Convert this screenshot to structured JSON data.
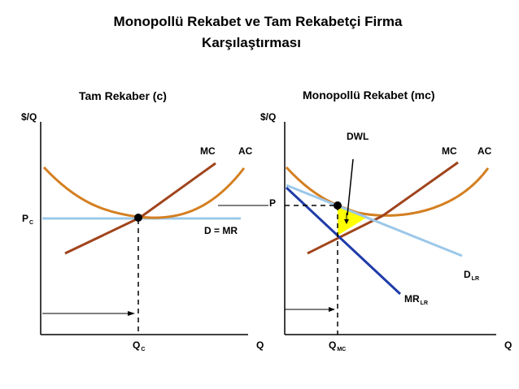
{
  "title_line1": "Monopollü Rekabet ve Tam Rekabetçi Firma",
  "title_line2": "Karşılaştırması",
  "left_panel": {
    "title": "Tam Rekaber (c)",
    "y_axis": "$/Q",
    "x_axis": "Q",
    "mc": "MC",
    "ac": "AC",
    "price_main": "P",
    "price_sub": "C",
    "demand": "D = MR",
    "qty_main": "Q",
    "qty_sub": "C"
  },
  "right_panel": {
    "title": "Monopollü Rekabet (mc)",
    "y_axis": "$/Q",
    "x_axis": "Q",
    "mc": "MC",
    "ac": "AC",
    "dwl": "DWL",
    "price": "P",
    "demand_main": "D",
    "demand_sub": "LR",
    "mr_main": "MR",
    "mr_sub": "LR",
    "qty_main": "Q",
    "qty_sub": "MC"
  },
  "colors": {
    "mc": "#a0441c",
    "ac": "#d47f20",
    "demand": "#9cc8ea",
    "mr": "#1f3ca8",
    "dwl": "#ffff00"
  }
}
